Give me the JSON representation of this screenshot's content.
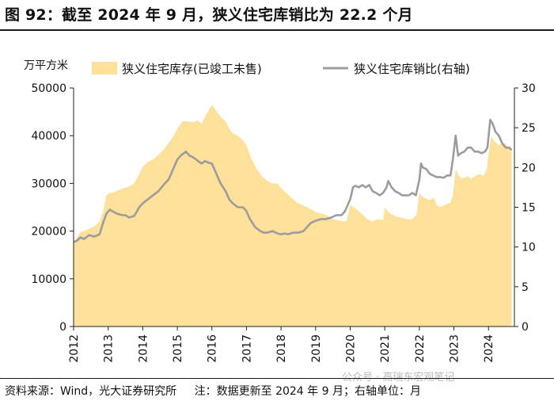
{
  "header": {
    "title": "图 92：截至 2024 年 9 月，狭义住宅库销比为 22.2 个月"
  },
  "footer": {
    "source": "资料来源：Wind，光大证券研究所",
    "note": "注：数据更新至 2024 年 9 月；右轴单位：月"
  },
  "watermark": "公众号 · 高瑞东宏观笔记",
  "chart_data": {
    "type": "area",
    "title": "截至 2024 年 9 月，狭义住宅库销比为 22.2 个月",
    "ylabel_left": "万平方米",
    "ylabel_right": "月",
    "ylim_left": [
      0,
      50000
    ],
    "ylim_right": [
      0,
      30
    ],
    "yticks_left": [
      "0",
      "10000",
      "20000",
      "30000",
      "40000",
      "50000"
    ],
    "yticks_right": [
      "0",
      "5",
      "10",
      "15",
      "20",
      "25",
      "30"
    ],
    "x_range": [
      2012.0,
      2024.75
    ],
    "xticks": [
      "2012",
      "2013",
      "2014",
      "2015",
      "2016",
      "2017",
      "2018",
      "2019",
      "2020",
      "2021",
      "2022",
      "2023",
      "2024"
    ],
    "grid": false,
    "legend_position": "top",
    "colors": {
      "area": "#fde19a",
      "line": "#9c9c9c",
      "axis": "#222222"
    },
    "series": [
      {
        "name": "狭义住宅库存(已竣工未售)",
        "axis": "left",
        "type": "area",
        "x": [
          2012.0,
          2012.08,
          2012.2,
          2012.3,
          2012.45,
          2012.6,
          2012.75,
          2012.85,
          2012.95,
          2013.05,
          2013.12,
          2013.3,
          2013.45,
          2013.6,
          2013.75,
          2013.9,
          2014.0,
          2014.15,
          2014.3,
          2014.45,
          2014.6,
          2014.75,
          2014.9,
          2015.0,
          2015.15,
          2015.3,
          2015.45,
          2015.6,
          2015.7,
          2015.8,
          2015.92,
          2016.0,
          2016.1,
          2016.25,
          2016.4,
          2016.5,
          2016.6,
          2016.75,
          2016.9,
          2017.0,
          2017.15,
          2017.3,
          2017.45,
          2017.6,
          2017.75,
          2017.9,
          2018.0,
          2018.15,
          2018.3,
          2018.45,
          2018.6,
          2018.75,
          2018.9,
          2019.0,
          2019.1,
          2019.25,
          2019.4,
          2019.5,
          2019.65,
          2019.8,
          2019.9,
          2020.0,
          2020.1,
          2020.2,
          2020.35,
          2020.5,
          2020.65,
          2020.8,
          2020.95,
          2021.0,
          2021.1,
          2021.2,
          2021.35,
          2021.5,
          2021.65,
          2021.8,
          2021.92,
          2022.0,
          2022.05,
          2022.15,
          2022.3,
          2022.42,
          2022.5,
          2022.6,
          2022.75,
          2022.9,
          2022.97,
          2023.05,
          2023.15,
          2023.25,
          2023.4,
          2023.5,
          2023.6,
          2023.75,
          2023.85,
          2023.95,
          2024.0,
          2024.08,
          2024.15,
          2024.3,
          2024.45,
          2024.6,
          2024.67
        ],
        "values": [
          17000,
          18500,
          19800,
          20000,
          20500,
          21000,
          22000,
          24000,
          27500,
          28000,
          28000,
          28600,
          29000,
          29300,
          30000,
          32000,
          33500,
          34500,
          35000,
          36000,
          37000,
          38500,
          40000,
          41500,
          43000,
          43000,
          42800,
          43200,
          42500,
          44000,
          45500,
          46500,
          45500,
          44000,
          43000,
          41500,
          40500,
          40000,
          39000,
          38000,
          35000,
          33000,
          31500,
          30500,
          30000,
          30000,
          29000,
          28000,
          27000,
          26000,
          25500,
          25000,
          24500,
          24000,
          23800,
          23500,
          23000,
          22500,
          22300,
          22000,
          22200,
          25500,
          25000,
          24500,
          23500,
          22500,
          22000,
          22500,
          22300,
          25000,
          24000,
          23500,
          23000,
          22800,
          22500,
          22500,
          23500,
          28000,
          27500,
          27000,
          26500,
          27000,
          25500,
          25000,
          25500,
          26000,
          27500,
          33000,
          31500,
          31000,
          31500,
          31000,
          31500,
          32000,
          31500,
          33000,
          36000,
          40000,
          39000,
          38000,
          38500,
          37500,
          37000
        ]
      },
      {
        "name": "狭义住宅库销比(右轴)",
        "axis": "right",
        "type": "line",
        "x": [
          2012.0,
          2012.1,
          2012.2,
          2012.3,
          2012.45,
          2012.6,
          2012.75,
          2012.85,
          2012.95,
          2013.05,
          2013.12,
          2013.25,
          2013.4,
          2013.5,
          2013.6,
          2013.75,
          2013.9,
          2014.0,
          2014.15,
          2014.3,
          2014.45,
          2014.6,
          2014.75,
          2014.9,
          2015.0,
          2015.1,
          2015.25,
          2015.35,
          2015.45,
          2015.55,
          2015.6,
          2015.7,
          2015.8,
          2015.9,
          2016.0,
          2016.1,
          2016.25,
          2016.4,
          2016.5,
          2016.6,
          2016.75,
          2016.9,
          2017.0,
          2017.1,
          2017.25,
          2017.4,
          2017.5,
          2017.6,
          2017.75,
          2017.9,
          2018.0,
          2018.1,
          2018.2,
          2018.35,
          2018.5,
          2018.65,
          2018.75,
          2018.85,
          2019.0,
          2019.15,
          2019.3,
          2019.45,
          2019.6,
          2019.75,
          2019.85,
          2019.95,
          2020.0,
          2020.08,
          2020.15,
          2020.25,
          2020.35,
          2020.45,
          2020.55,
          2020.65,
          2020.75,
          2020.85,
          2020.95,
          2021.05,
          2021.1,
          2021.2,
          2021.3,
          2021.4,
          2021.5,
          2021.6,
          2021.7,
          2021.8,
          2021.9,
          2022.0,
          2022.05,
          2022.1,
          2022.2,
          2022.3,
          2022.4,
          2022.5,
          2022.6,
          2022.7,
          2022.8,
          2022.9,
          2022.97,
          2023.05,
          2023.12,
          2023.2,
          2023.3,
          2023.4,
          2023.5,
          2023.6,
          2023.7,
          2023.8,
          2023.9,
          2023.97,
          2024.05,
          2024.12,
          2024.2,
          2024.3,
          2024.4,
          2024.5,
          2024.6,
          2024.67
        ],
        "values": [
          10.6,
          10.8,
          11.2,
          11.0,
          11.5,
          11.3,
          11.6,
          13.0,
          14.2,
          14.7,
          14.5,
          14.2,
          14.0,
          14.0,
          13.7,
          13.9,
          15.0,
          15.5,
          16.0,
          16.5,
          17.0,
          17.8,
          18.5,
          20.0,
          21.0,
          21.5,
          22.0,
          21.5,
          21.3,
          21.0,
          20.8,
          20.5,
          20.8,
          20.6,
          20.5,
          19.5,
          18.0,
          17.0,
          16.0,
          15.5,
          15.0,
          15.0,
          14.5,
          13.5,
          12.5,
          12.0,
          11.8,
          11.8,
          12.0,
          11.7,
          11.6,
          11.7,
          11.6,
          11.8,
          11.8,
          12.0,
          12.5,
          13.0,
          13.3,
          13.5,
          13.5,
          13.7,
          14.0,
          14.0,
          14.5,
          15.5,
          16.0,
          17.5,
          17.7,
          17.5,
          17.8,
          17.5,
          17.8,
          17.0,
          16.8,
          16.5,
          16.8,
          17.5,
          18.3,
          17.5,
          17.0,
          16.8,
          16.5,
          16.5,
          16.5,
          16.8,
          16.5,
          18.5,
          20.5,
          20.0,
          19.8,
          19.2,
          19.0,
          18.8,
          18.8,
          18.7,
          19.0,
          19.0,
          21.0,
          24.0,
          21.5,
          21.8,
          22.0,
          22.5,
          22.5,
          22.0,
          22.0,
          21.8,
          22.0,
          22.5,
          26.0,
          25.5,
          24.5,
          24.0,
          23.0,
          22.5,
          22.5,
          22.2
        ]
      }
    ],
    "legend": [
      "狭义住宅库存(已竣工未售)",
      "狭义住宅库销比(右轴)"
    ]
  }
}
